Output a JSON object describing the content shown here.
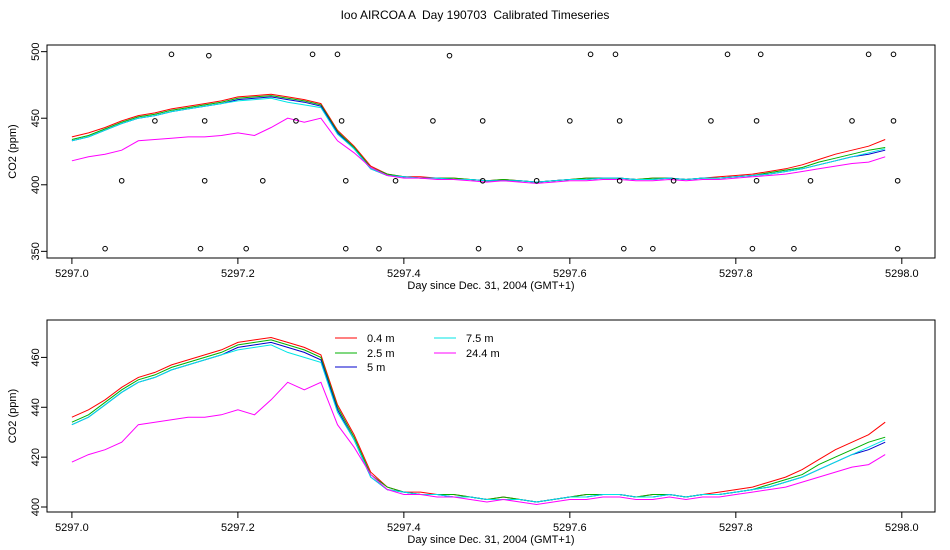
{
  "title": "Ioo AIRCOA A  Day 190703  Calibrated Timeseries",
  "chart_data": [
    {
      "type": "line",
      "xlabel": "Day since Dec. 31, 2004 (GMT+1)",
      "ylabel": "CO2 (ppm)",
      "xlim": [
        5296.97,
        5298.04
      ],
      "ylim": [
        345,
        505
      ],
      "xticks": [
        "5297.0",
        "5297.2",
        "5297.4",
        "5297.6",
        "5297.8",
        "5298.0"
      ],
      "yticks": [
        "350",
        "400",
        "450",
        "500"
      ],
      "grid": false,
      "x": [
        5297.0,
        5297.02,
        5297.04,
        5297.06,
        5297.08,
        5297.1,
        5297.12,
        5297.14,
        5297.16,
        5297.18,
        5297.2,
        5297.22,
        5297.24,
        5297.26,
        5297.28,
        5297.3,
        5297.32,
        5297.34,
        5297.36,
        5297.38,
        5297.4,
        5297.42,
        5297.44,
        5297.46,
        5297.48,
        5297.5,
        5297.52,
        5297.54,
        5297.56,
        5297.58,
        5297.6,
        5297.62,
        5297.64,
        5297.66,
        5297.68,
        5297.7,
        5297.72,
        5297.74,
        5297.76,
        5297.78,
        5297.8,
        5297.82,
        5297.84,
        5297.86,
        5297.88,
        5297.9,
        5297.92,
        5297.94,
        5297.96,
        5297.98
      ],
      "series": [
        {
          "color": "#ff0000",
          "values": [
            436,
            439,
            443,
            448,
            452,
            454,
            457,
            459,
            461,
            463,
            466,
            467,
            468,
            466,
            464,
            461,
            441,
            429,
            414,
            408,
            406,
            406,
            405,
            405,
            404,
            403,
            404,
            403,
            402,
            403,
            404,
            405,
            405,
            405,
            404,
            405,
            405,
            404,
            405,
            406,
            407,
            408,
            410,
            412,
            415,
            419,
            423,
            426,
            429,
            434
          ]
        },
        {
          "color": "#00b000",
          "values": [
            434,
            437,
            442,
            447,
            451,
            453,
            456,
            458,
            460,
            462,
            465,
            466,
            467,
            465,
            463,
            460,
            440,
            428,
            413,
            408,
            406,
            405,
            405,
            405,
            404,
            403,
            404,
            403,
            402,
            403,
            404,
            405,
            405,
            405,
            404,
            405,
            405,
            404,
            405,
            405,
            406,
            407,
            409,
            411,
            413,
            417,
            420,
            423,
            426,
            428
          ]
        },
        {
          "color": "#0000cc",
          "values": [
            433,
            436,
            441,
            446,
            450,
            452,
            455,
            457,
            459,
            461,
            464,
            465,
            466,
            464,
            462,
            459,
            439,
            427,
            412,
            407,
            406,
            405,
            405,
            404,
            404,
            403,
            403,
            403,
            402,
            403,
            404,
            404,
            405,
            405,
            404,
            404,
            405,
            404,
            405,
            405,
            406,
            407,
            408,
            410,
            412,
            415,
            418,
            421,
            423,
            426
          ]
        },
        {
          "color": "#00e5e5",
          "values": [
            433,
            436,
            441,
            446,
            450,
            452,
            455,
            457,
            459,
            461,
            463,
            464,
            465,
            462,
            460,
            458,
            438,
            427,
            412,
            407,
            406,
            405,
            405,
            404,
            404,
            403,
            403,
            403,
            402,
            403,
            404,
            404,
            405,
            405,
            404,
            404,
            405,
            404,
            405,
            405,
            406,
            407,
            408,
            410,
            412,
            415,
            418,
            421,
            424,
            427
          ]
        },
        {
          "color": "#ff00ff",
          "values": [
            418,
            421,
            423,
            426,
            433,
            434,
            435,
            436,
            436,
            437,
            439,
            437,
            443,
            450,
            447,
            450,
            433,
            424,
            413,
            407,
            405,
            405,
            404,
            404,
            403,
            402,
            403,
            402,
            401,
            402,
            403,
            403,
            404,
            404,
            403,
            403,
            404,
            403,
            404,
            404,
            405,
            406,
            407,
            408,
            410,
            412,
            414,
            416,
            417,
            421
          ]
        }
      ],
      "scatter": {
        "x": [
          5297.04,
          5297.06,
          5297.1,
          5297.12,
          5297.155,
          5297.16,
          5297.16,
          5297.165,
          5297.21,
          5297.23,
          5297.27,
          5297.29,
          5297.32,
          5297.325,
          5297.33,
          5297.33,
          5297.37,
          5297.39,
          5297.435,
          5297.455,
          5297.49,
          5297.495,
          5297.495,
          5297.54,
          5297.56,
          5297.6,
          5297.625,
          5297.655,
          5297.66,
          5297.66,
          5297.665,
          5297.7,
          5297.725,
          5297.77,
          5297.79,
          5297.82,
          5297.825,
          5297.825,
          5297.83,
          5297.87,
          5297.89,
          5297.94,
          5297.96,
          5297.99,
          5297.99,
          5297.995,
          5297.995
        ],
        "y": [
          352,
          403,
          448,
          498,
          352,
          403,
          448,
          497,
          352,
          403,
          448,
          498,
          498,
          448,
          403,
          352,
          352,
          403,
          448,
          497,
          352,
          403,
          448,
          352,
          403,
          448,
          498,
          498,
          448,
          403,
          352,
          352,
          403,
          448,
          498,
          352,
          403,
          448,
          498,
          352,
          403,
          448,
          498,
          498,
          448,
          403,
          352
        ]
      }
    },
    {
      "type": "line",
      "xlabel": "Day since Dec. 31, 2004 (GMT+1)",
      "ylabel": "CO2 (ppm)",
      "xlim": [
        5296.97,
        5298.04
      ],
      "ylim": [
        398,
        475
      ],
      "xticks": [
        "5297.0",
        "5297.2",
        "5297.4",
        "5297.6",
        "5297.8",
        "5298.0"
      ],
      "yticks": [
        "400",
        "420",
        "440",
        "460"
      ],
      "grid": false,
      "legend": "top-center",
      "x": [
        5297.0,
        5297.02,
        5297.04,
        5297.06,
        5297.08,
        5297.1,
        5297.12,
        5297.14,
        5297.16,
        5297.18,
        5297.2,
        5297.22,
        5297.24,
        5297.26,
        5297.28,
        5297.3,
        5297.32,
        5297.34,
        5297.36,
        5297.38,
        5297.4,
        5297.42,
        5297.44,
        5297.46,
        5297.48,
        5297.5,
        5297.52,
        5297.54,
        5297.56,
        5297.58,
        5297.6,
        5297.62,
        5297.64,
        5297.66,
        5297.68,
        5297.7,
        5297.72,
        5297.74,
        5297.76,
        5297.78,
        5297.8,
        5297.82,
        5297.84,
        5297.86,
        5297.88,
        5297.9,
        5297.92,
        5297.94,
        5297.96,
        5297.98
      ],
      "series": [
        {
          "name": "0.4 m",
          "color": "#ff0000",
          "values": [
            436,
            439,
            443,
            448,
            452,
            454,
            457,
            459,
            461,
            463,
            466,
            467,
            468,
            466,
            464,
            461,
            441,
            429,
            414,
            408,
            406,
            406,
            405,
            405,
            404,
            403,
            404,
            403,
            402,
            403,
            404,
            405,
            405,
            405,
            404,
            405,
            405,
            404,
            405,
            406,
            407,
            408,
            410,
            412,
            415,
            419,
            423,
            426,
            429,
            434
          ]
        },
        {
          "name": "2.5 m",
          "color": "#00b000",
          "values": [
            434,
            437,
            442,
            447,
            451,
            453,
            456,
            458,
            460,
            462,
            465,
            466,
            467,
            465,
            463,
            460,
            440,
            428,
            413,
            408,
            406,
            405,
            405,
            405,
            404,
            403,
            404,
            403,
            402,
            403,
            404,
            405,
            405,
            405,
            404,
            405,
            405,
            404,
            405,
            405,
            406,
            407,
            409,
            411,
            413,
            417,
            420,
            423,
            426,
            428
          ]
        },
        {
          "name": "5 m",
          "color": "#0000cc",
          "values": [
            433,
            436,
            441,
            446,
            450,
            452,
            455,
            457,
            459,
            461,
            464,
            465,
            466,
            464,
            462,
            459,
            439,
            427,
            412,
            407,
            406,
            405,
            405,
            404,
            404,
            403,
            403,
            403,
            402,
            403,
            404,
            404,
            405,
            405,
            404,
            404,
            405,
            404,
            405,
            405,
            406,
            407,
            408,
            410,
            412,
            415,
            418,
            421,
            423,
            426
          ]
        },
        {
          "name": "7.5 m",
          "color": "#00e5e5",
          "values": [
            433,
            436,
            441,
            446,
            450,
            452,
            455,
            457,
            459,
            461,
            463,
            464,
            465,
            462,
            460,
            458,
            438,
            427,
            412,
            407,
            406,
            405,
            405,
            404,
            404,
            403,
            403,
            403,
            402,
            403,
            404,
            404,
            405,
            405,
            404,
            404,
            405,
            404,
            405,
            405,
            406,
            407,
            408,
            410,
            412,
            415,
            418,
            421,
            424,
            427
          ]
        },
        {
          "name": "24.4 m",
          "color": "#ff00ff",
          "values": [
            418,
            421,
            423,
            426,
            433,
            434,
            435,
            436,
            436,
            437,
            439,
            437,
            443,
            450,
            447,
            450,
            433,
            424,
            413,
            407,
            405,
            405,
            404,
            404,
            403,
            402,
            403,
            402,
            401,
            402,
            403,
            403,
            404,
            404,
            403,
            403,
            404,
            403,
            404,
            404,
            405,
            406,
            407,
            408,
            410,
            412,
            414,
            416,
            417,
            421
          ]
        }
      ]
    }
  ]
}
